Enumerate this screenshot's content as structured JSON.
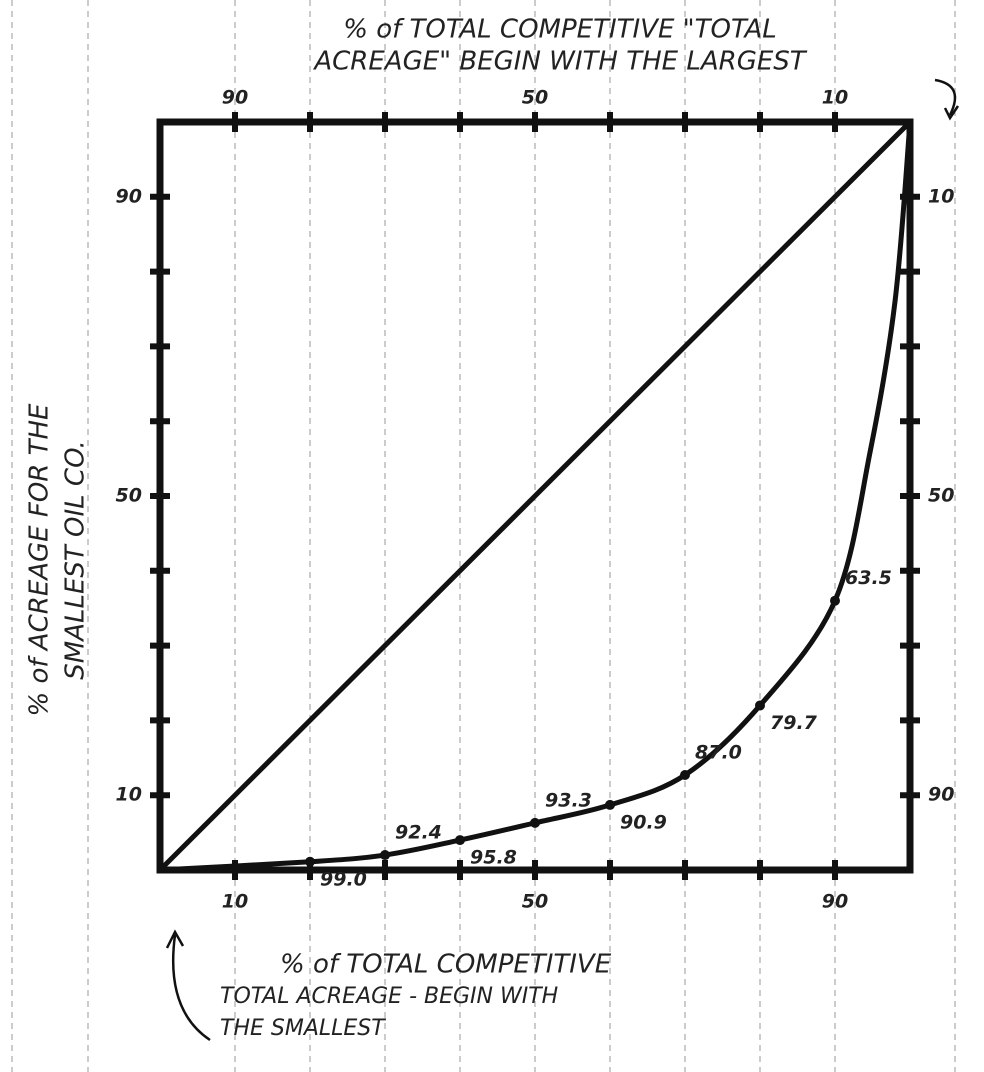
{
  "chart_data": {
    "type": "line",
    "title_lines": [
      "% of TOTAL COMPETITIVE \"TOTAL",
      "ACREAGE\" BEGIN WITH THE LARGEST"
    ],
    "x_label_lines": [
      "% of TOTAL COMPETITIVE",
      "TOTAL ACREAGE - BEGIN WITH",
      "THE SMALLEST"
    ],
    "y_label_lines": [
      "% of ACREAGE FOR THE",
      "SMALLEST OIL CO."
    ],
    "xlim": [
      0,
      100
    ],
    "ylim": [
      0,
      100
    ],
    "x2lim": [
      100,
      0
    ],
    "y2lim": [
      100,
      0
    ],
    "xticks": [
      10,
      50,
      90
    ],
    "yticks": [
      10,
      50,
      90
    ],
    "x2ticks": [
      90,
      50,
      10
    ],
    "y2ticks": [
      10,
      50,
      90
    ],
    "minor_ticks": [
      10,
      20,
      30,
      40,
      50,
      60,
      70,
      80,
      90
    ],
    "series": [
      {
        "color": "#111",
        "x": [
          0,
          100
        ],
        "values": [
          0,
          100
        ]
      },
      {
        "color": "#111",
        "x": [
          0,
          20,
          30,
          40,
          50,
          60,
          70,
          80,
          90,
          94.7,
          98,
          100
        ],
        "values": [
          0,
          1.1,
          2,
          4,
          6.3,
          8.7,
          12.7,
          22,
          36,
          56,
          76,
          100
        ]
      }
    ],
    "point_labels": [
      {
        "text": "99.0",
        "x": 20,
        "y": 1.1
      },
      {
        "text": "92.4",
        "x": 30,
        "y": 2
      },
      {
        "text": "95.8",
        "x": 40,
        "y": 4
      },
      {
        "text": "93.3",
        "x": 50,
        "y": 6.3
      },
      {
        "text": "90.9",
        "x": 60,
        "y": 8.7
      },
      {
        "text": "87.0",
        "x": 70,
        "y": 12.7
      },
      {
        "text": "79.7",
        "x": 80,
        "y": 22
      },
      {
        "text": "63.5",
        "x": 90,
        "y": 36
      }
    ]
  }
}
